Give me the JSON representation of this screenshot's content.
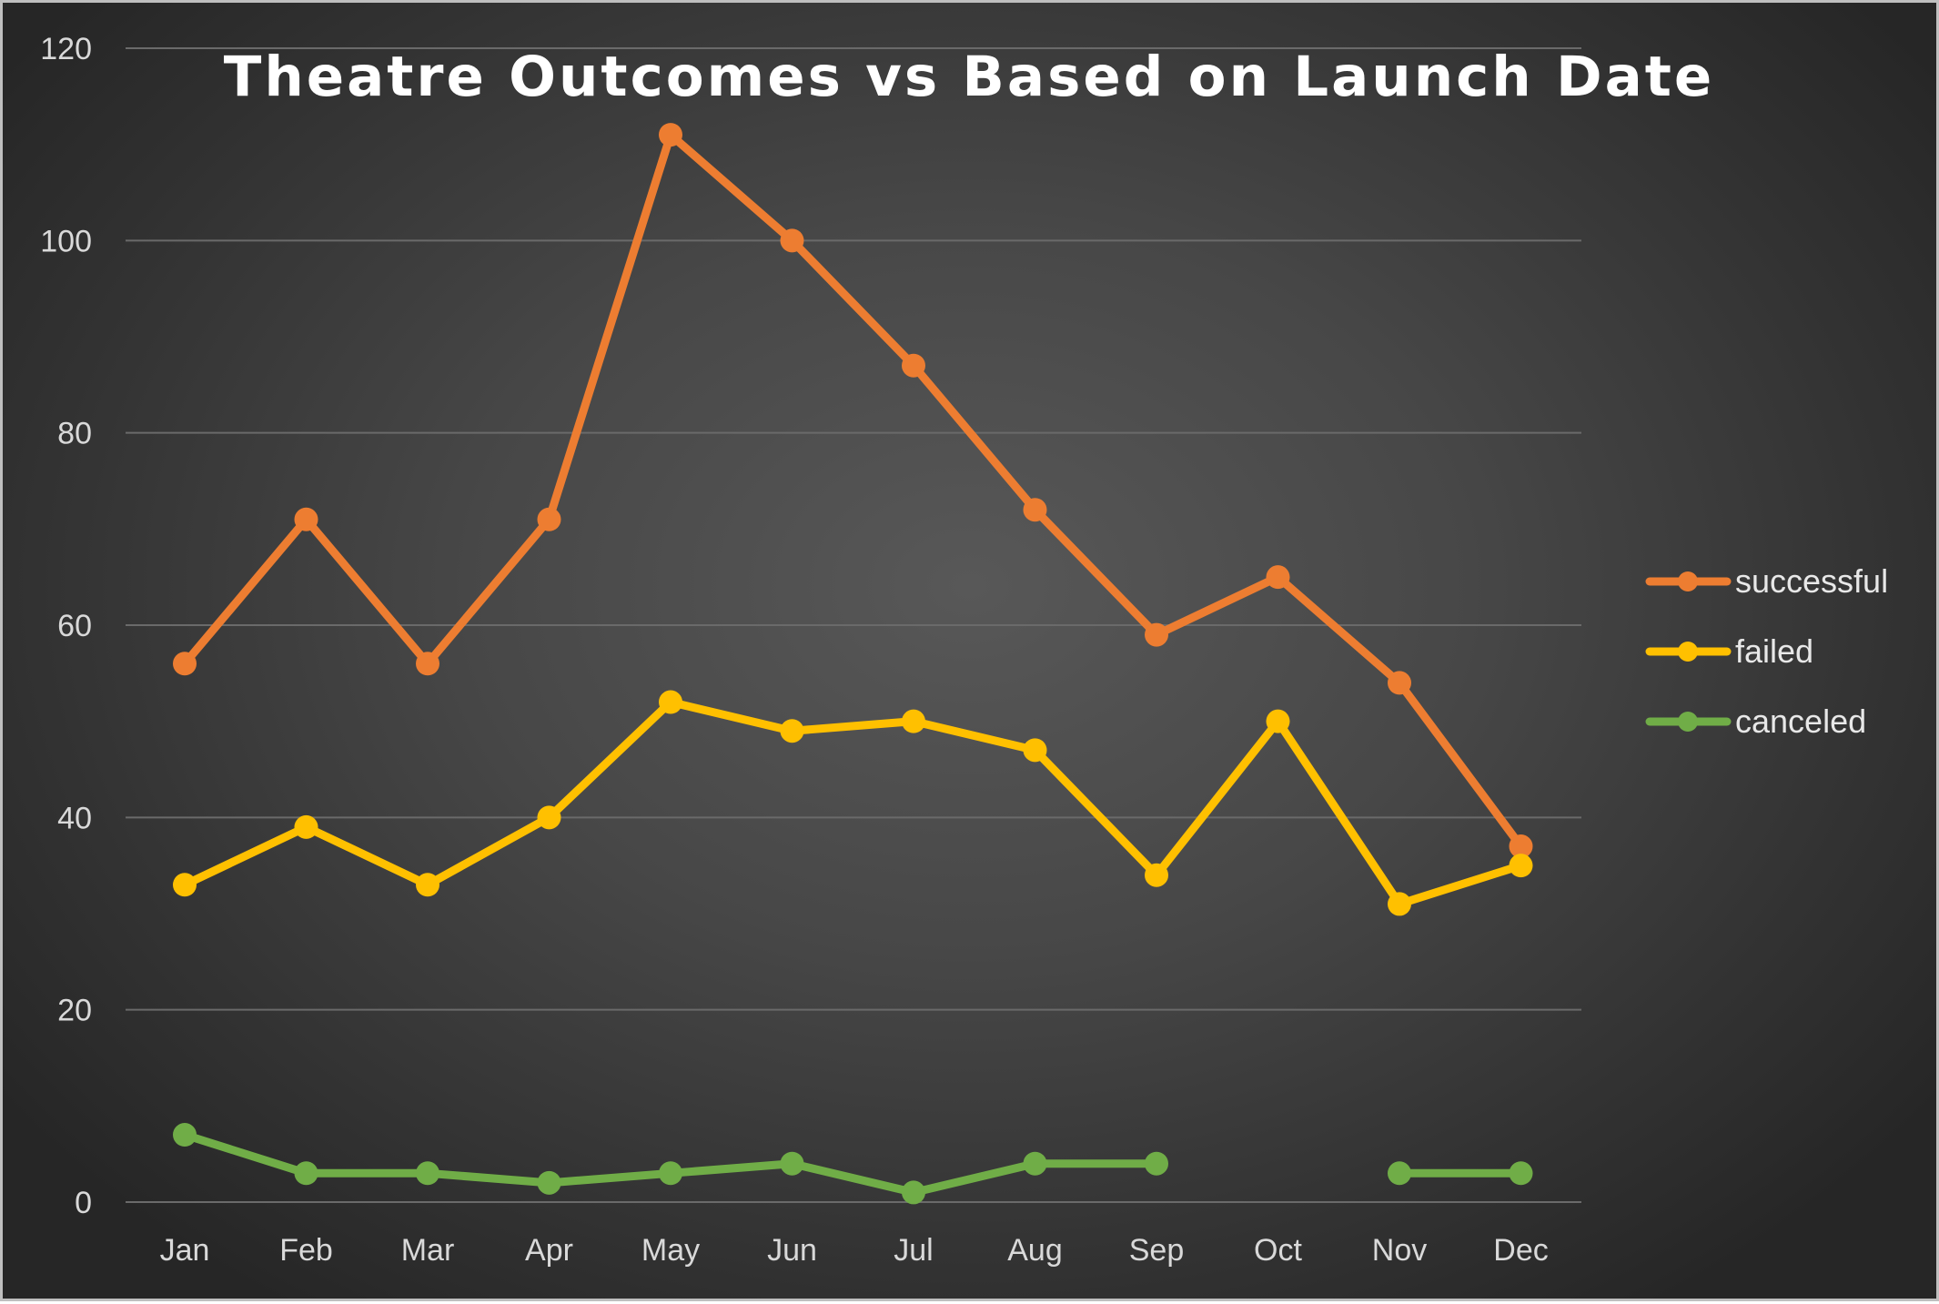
{
  "chart_data": {
    "type": "line",
    "title": "Theatre Outcomes vs Based on Launch Date",
    "xlabel": "",
    "ylabel": "",
    "categories": [
      "Jan",
      "Feb",
      "Mar",
      "Apr",
      "May",
      "Jun",
      "Jul",
      "Aug",
      "Sep",
      "Oct",
      "Nov",
      "Dec"
    ],
    "ylim": [
      0,
      120
    ],
    "yticks": [
      0,
      20,
      40,
      60,
      80,
      100,
      120
    ],
    "grid": true,
    "legend_position": "right",
    "series": [
      {
        "name": "successful",
        "color": "#ed7d31",
        "values": [
          56,
          71,
          56,
          71,
          111,
          100,
          87,
          72,
          59,
          65,
          54,
          37
        ]
      },
      {
        "name": "failed",
        "color": "#ffc000",
        "values": [
          33,
          39,
          33,
          40,
          52,
          49,
          50,
          47,
          34,
          50,
          31,
          35
        ]
      },
      {
        "name": "canceled",
        "color": "#70ad47",
        "values": [
          7,
          3,
          3,
          2,
          3,
          4,
          1,
          4,
          4,
          null,
          3,
          3
        ]
      }
    ]
  }
}
